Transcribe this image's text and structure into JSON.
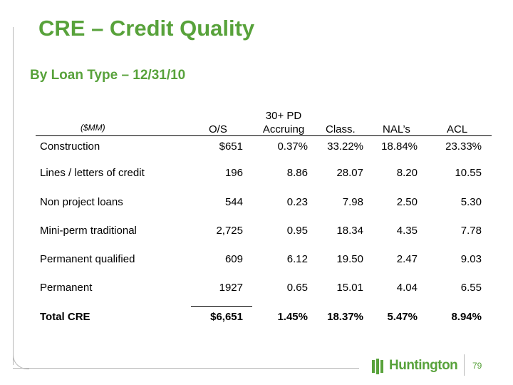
{
  "title": "CRE – Credit Quality",
  "subtitle": "By Loan Type – 12/31/10",
  "table": {
    "units": "($MM)",
    "columns": {
      "os": "O/S",
      "pd_line1": "30+ PD",
      "pd_line2": "Accruing",
      "class": "Class.",
      "nal": "NAL’s",
      "acl": "ACL"
    },
    "rows": [
      {
        "label": "Construction",
        "os": "$651",
        "pd": "0.37%",
        "class": "33.22%",
        "nal": "18.84%",
        "acl": "23.33%"
      },
      {
        "label": "Lines / letters of credit",
        "os": "196",
        "pd": "8.86",
        "class": "28.07",
        "nal": "8.20",
        "acl": "10.55"
      },
      {
        "label": "Non project loans",
        "os": "544",
        "pd": "0.23",
        "class": "7.98",
        "nal": "2.50",
        "acl": "5.30"
      },
      {
        "label": "Mini-perm traditional",
        "os": "2,725",
        "pd": "0.95",
        "class": "18.34",
        "nal": "4.35",
        "acl": "7.78"
      },
      {
        "label": "Permanent qualified",
        "os": "609",
        "pd": "6.12",
        "class": "19.50",
        "nal": "2.47",
        "acl": "9.03"
      },
      {
        "label": "Permanent",
        "os": "1927",
        "pd": "0.65",
        "class": "15.01",
        "nal": "4.04",
        "acl": "6.55"
      }
    ],
    "total": {
      "label": "Total CRE",
      "os": "$6,651",
      "pd": "1.45%",
      "class": "18.37%",
      "nal": "5.47%",
      "acl": "8.94%"
    }
  },
  "footer": {
    "logo_text": "Huntington",
    "page_number": "79"
  },
  "colors": {
    "accent": "#58a23b",
    "rule": "#b8b8b8"
  }
}
